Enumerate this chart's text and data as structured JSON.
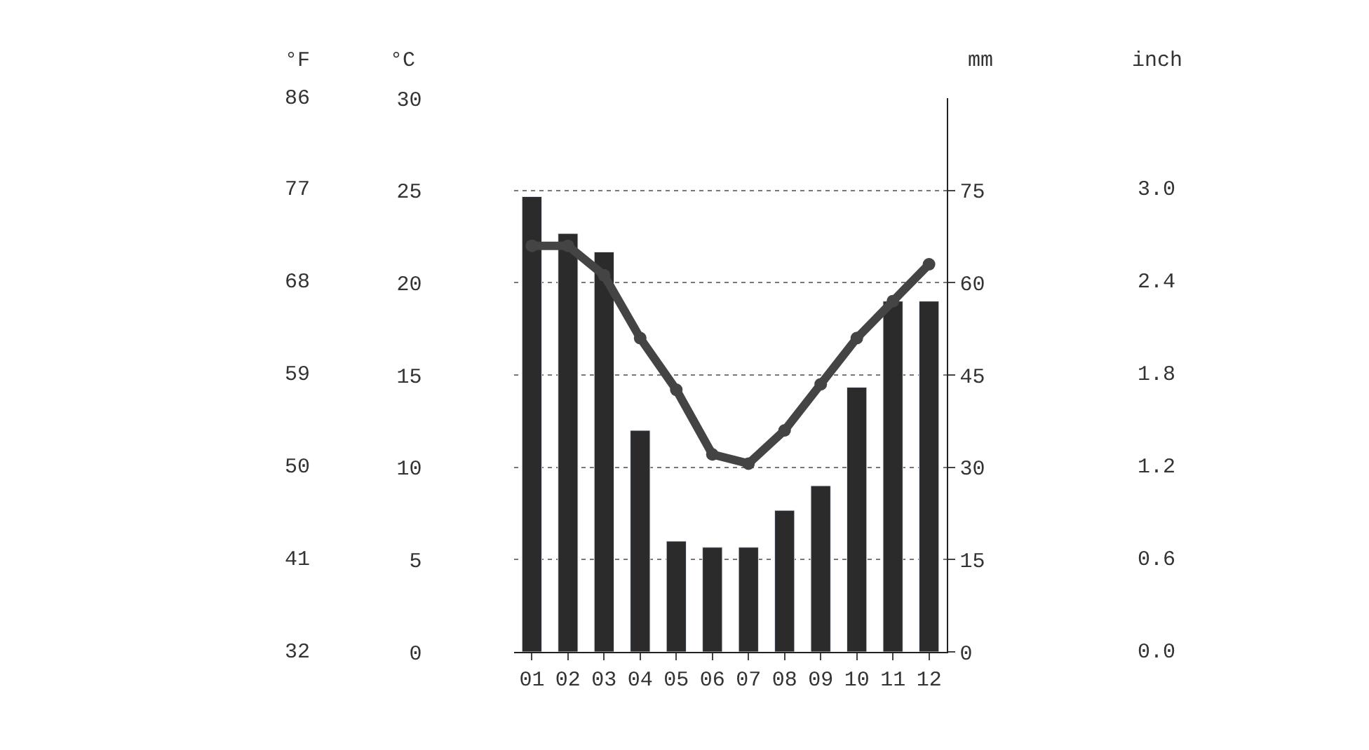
{
  "chart_data": {
    "type": "bar",
    "categories": [
      "01",
      "02",
      "03",
      "04",
      "05",
      "06",
      "07",
      "08",
      "09",
      "10",
      "11",
      "12"
    ],
    "series": [
      {
        "axis": "y2",
        "color": "#2b2b2b",
        "values": [
          74,
          68,
          65,
          36,
          18,
          17,
          17,
          23,
          27,
          43,
          57,
          57
        ]
      },
      {
        "type": "line",
        "axis": "y",
        "color": "#444444",
        "marker": "circle",
        "values": [
          22,
          22,
          20.4,
          17,
          14.2,
          10.7,
          10.2,
          12,
          14.5,
          17,
          19,
          21
        ]
      }
    ],
    "ylabel": "°C",
    "y2label": "mm",
    "annotations": [
      "°F",
      "32",
      "41",
      "50",
      "59",
      "68",
      "77",
      "86",
      "inch",
      "0.0",
      "0.6",
      "1.2",
      "1.8",
      "2.4",
      "3.0"
    ],
    "ylim": [
      0,
      30
    ],
    "yticks": [
      0,
      5,
      10,
      15,
      20,
      25,
      30
    ],
    "y2lim": [
      0,
      90
    ],
    "y2ticks": [
      0,
      15,
      30,
      45,
      60,
      75
    ],
    "grid": "y"
  }
}
